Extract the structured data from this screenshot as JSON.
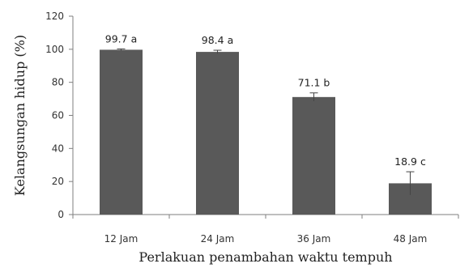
{
  "chart_data": {
    "type": "bar",
    "categories": [
      "12 Jam",
      "24 Jam",
      "36 Jam",
      "48 Jam"
    ],
    "values": [
      99.7,
      98.4,
      71.1,
      18.9
    ],
    "errors": [
      0.5,
      1.0,
      2.5,
      7.0
    ],
    "data_labels": [
      "99.7 a",
      "98.4 a",
      "71.1 b",
      "18.9 c"
    ],
    "xlabel": "Perlakuan penambahan waktu tempuh",
    "ylabel": "Kelangsungan hidup (%)",
    "ylim": [
      0,
      120
    ],
    "yticks": [
      "0",
      "20",
      "40",
      "60",
      "80",
      "100",
      "120"
    ],
    "ytick_values": [
      0,
      20,
      40,
      60,
      80,
      100,
      120
    ],
    "grid": false,
    "bar_color": "#595959"
  }
}
